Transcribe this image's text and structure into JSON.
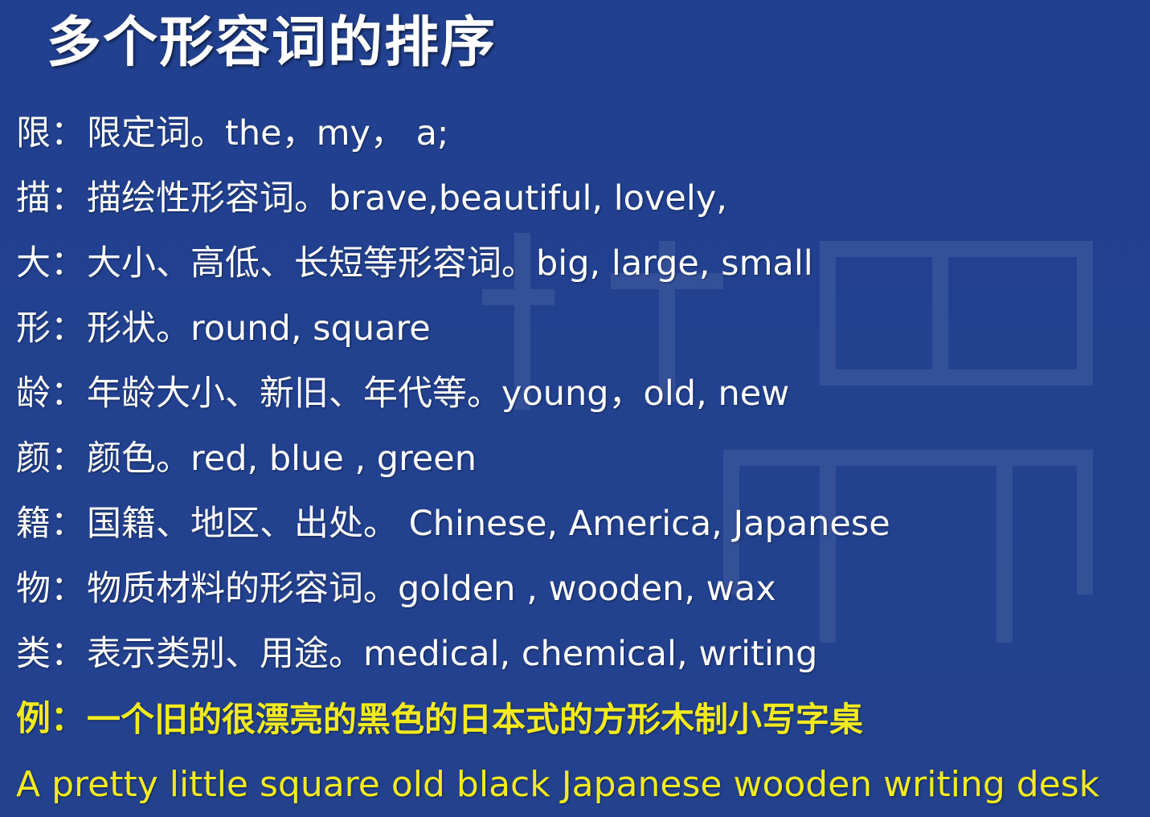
{
  "title": "多个形容词的排序",
  "rows": [
    {
      "key": "限：",
      "text": "限定词。the，my， a;"
    },
    {
      "key": "描：",
      "text": "描绘性形容词。brave,beautiful, lovely,"
    },
    {
      "key": "大：",
      "text": "大小、高低、长短等形容词。big, large, small"
    },
    {
      "key": "形：",
      "text": "形状。round, square"
    },
    {
      "key": "龄：",
      "text": "年龄大小、新旧、年代等。young，old, new"
    },
    {
      "key": "颜：",
      "text": "颜色。red, blue , green"
    },
    {
      "key": "籍：",
      "text": "国籍、地区、出处。 Chinese, America, Japanese"
    },
    {
      "key": "物：",
      "text": "物质材料的形容词。golden , wooden, wax"
    },
    {
      "key": "类：",
      "text": "表示类别、用途。medical, chemical, writing"
    }
  ],
  "example": {
    "key": "例：",
    "text": "一个旧的很漂亮的黑色的日本式的方形木制小写字桌",
    "sentence": "A pretty little square old black Japanese wooden writing desk"
  },
  "colors": {
    "background": "#22408f",
    "text": "#ffffff",
    "highlight": "#f2ea1f"
  }
}
